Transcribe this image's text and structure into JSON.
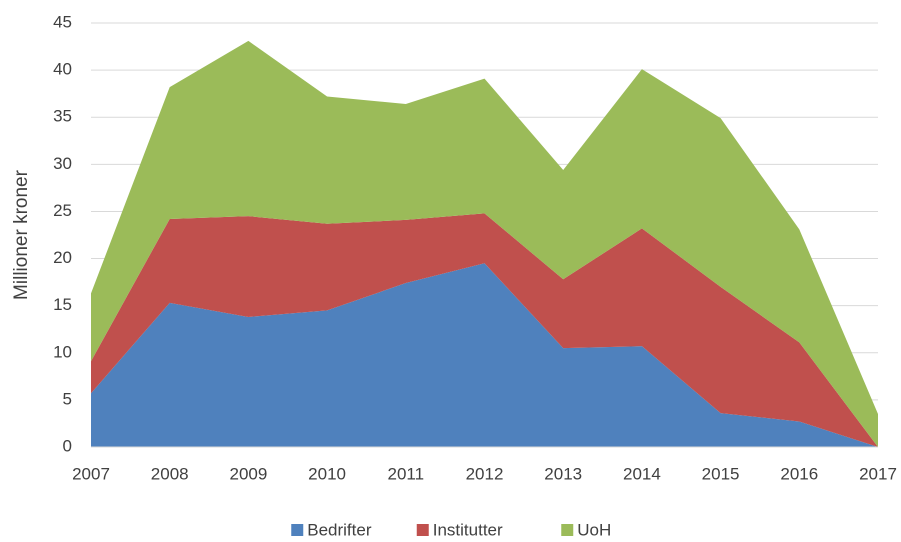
{
  "chart_data": {
    "type": "stacked_area",
    "y_label": "Millioner kroner",
    "categories": [
      "2007",
      "2008",
      "2009",
      "2010",
      "2011",
      "2012",
      "2013",
      "2014",
      "2015",
      "2016",
      "2017"
    ],
    "series": [
      {
        "name": "Bedrifter",
        "color": "#4f81bd",
        "values": [
          5.7,
          15.3,
          13.8,
          14.5,
          17.4,
          19.5,
          10.5,
          10.7,
          3.6,
          2.7,
          0
        ]
      },
      {
        "name": "Institutter",
        "color": "#c0504d",
        "values": [
          3.4,
          8.9,
          10.7,
          9.2,
          6.7,
          5.3,
          7.3,
          12.5,
          13.4,
          8.4,
          0
        ]
      },
      {
        "name": "UoH",
        "color": "#9bbb59",
        "values": [
          7.2,
          14.0,
          18.6,
          13.5,
          12.3,
          14.3,
          11.6,
          16.9,
          17.9,
          12.0,
          3.5
        ]
      }
    ],
    "ylim": [
      0,
      45
    ],
    "yticks": [
      0,
      5,
      10,
      15,
      20,
      25,
      30,
      35,
      40,
      45
    ],
    "grid": true,
    "legend": "bottom"
  }
}
